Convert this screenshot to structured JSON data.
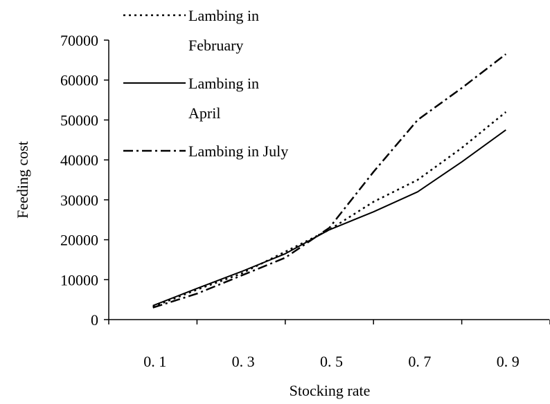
{
  "chart_data": {
    "type": "line",
    "xlabel": "Stocking rate",
    "ylabel": "Feeding cost",
    "x": [
      0.1,
      0.2,
      0.3,
      0.4,
      0.5,
      0.6,
      0.7,
      0.8,
      0.9
    ],
    "x_tick_labels": [
      "0. 1",
      "0. 3",
      "0. 5",
      "0. 7",
      "0. 9"
    ],
    "x_tick_values": [
      0.1,
      0.3,
      0.5,
      0.7,
      0.9
    ],
    "y_ticks": [
      0,
      10000,
      20000,
      30000,
      40000,
      50000,
      60000,
      70000
    ],
    "y_tick_labels": [
      "0",
      "10000",
      "20000",
      "30000",
      "40000",
      "50000",
      "60000",
      "70000"
    ],
    "xlim": [
      0.0,
      1.0
    ],
    "ylim": [
      0,
      70000
    ],
    "grid": false,
    "legend_placement": "top",
    "series": [
      {
        "name": "Lambing in February",
        "name_lines": [
          "Lambing in",
          "February"
        ],
        "style": "dotted",
        "values": [
          3200,
          7500,
          11500,
          17000,
          22500,
          29500,
          35000,
          43000,
          52000
        ]
      },
      {
        "name": "Lambing in April",
        "name_lines": [
          "Lambing in",
          "April"
        ],
        "style": "solid",
        "values": [
          3500,
          7800,
          12000,
          16500,
          22500,
          27000,
          32000,
          39500,
          47500
        ]
      },
      {
        "name": "Lambing in July",
        "name_lines": [
          "Lambing in July"
        ],
        "style": "dashdot",
        "values": [
          3000,
          6500,
          11000,
          15500,
          23000,
          37000,
          50000,
          58000,
          66500
        ]
      }
    ]
  }
}
